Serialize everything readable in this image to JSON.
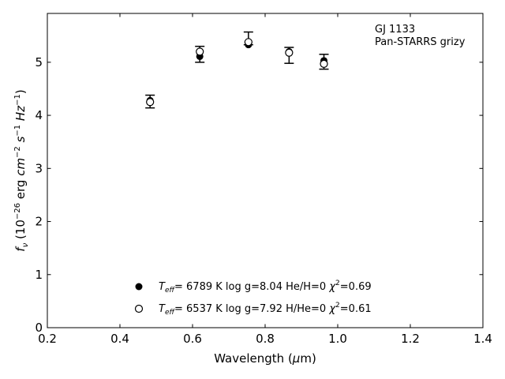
{
  "chart_data": {
    "type": "scatter",
    "xlabel_main": "Wavelength (",
    "xlabel_mu": "μ",
    "xlabel_tail": "m)",
    "ylabel_parts": [
      "f",
      "ν",
      " (10",
      "−26",
      " erg ",
      "cm",
      "−2",
      " ",
      "s",
      "−1",
      " ",
      "Hz",
      "−1",
      ")"
    ],
    "xlim": [
      0.2,
      1.4
    ],
    "ylim": [
      0,
      5.92
    ],
    "xticks": [
      0.2,
      0.4,
      0.6,
      0.8,
      1.0,
      1.2,
      1.4
    ],
    "xtick_labels": [
      "0.2",
      "0.4",
      "0.6",
      "0.8",
      "1.0",
      "1.2",
      "1.4"
    ],
    "yticks": [
      0,
      1,
      2,
      3,
      4,
      5
    ],
    "ytick_labels": [
      "0",
      "1",
      "2",
      "3",
      "4",
      "5"
    ],
    "annotation": [
      "GJ 1133",
      "Pan-STARRS grizy"
    ],
    "observed": {
      "x": [
        0.483,
        0.62,
        0.754,
        0.866,
        0.962
      ],
      "y": [
        4.26,
        5.15,
        5.45,
        5.13,
        5.01
      ],
      "yerr": [
        0.12,
        0.15,
        0.12,
        0.15,
        0.14
      ]
    },
    "series": [
      {
        "name": "Teff= 6789 K log g=8.04 He/H=0 χ2=0.69",
        "marker": "filled-circle",
        "x": [
          0.483,
          0.62,
          0.754,
          0.866,
          0.962
        ],
        "y": [
          4.28,
          5.11,
          5.33,
          5.2,
          5.03
        ]
      },
      {
        "name": "Teff= 6537 K log g=7.92 H/He=0 χ2=0.61",
        "marker": "open-circle",
        "x": [
          0.483,
          0.62,
          0.754,
          0.866,
          0.962
        ],
        "y": [
          4.25,
          5.2,
          5.38,
          5.18,
          4.97
        ]
      }
    ],
    "legend": [
      {
        "teff": "6789 K",
        "logg": "log g=8.04",
        "comp": "He/H=0",
        "chi": "=0.69"
      },
      {
        "teff": "6537 K",
        "logg": "log g=7.92",
        "comp": "H/He=0",
        "chi": "=0.61"
      }
    ],
    "legend_placement": "lower-center",
    "grid": false
  }
}
